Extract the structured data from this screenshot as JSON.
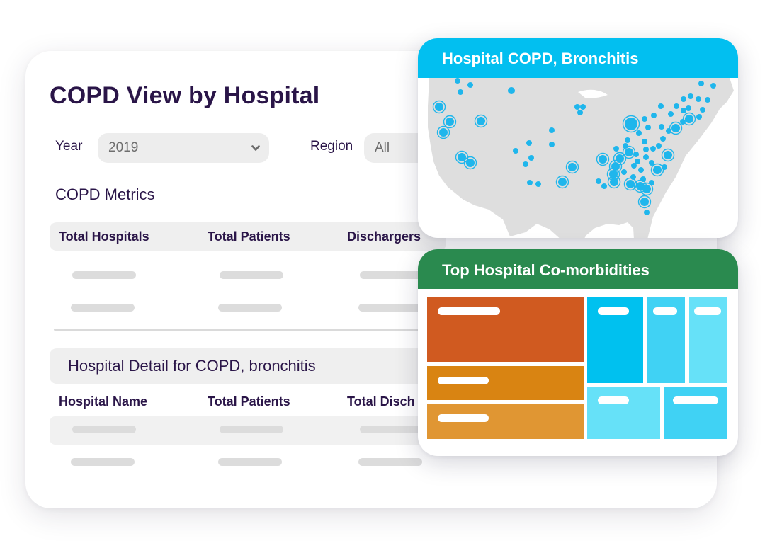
{
  "main": {
    "title": "COPD View by Hospital",
    "filters": {
      "year_label": "Year",
      "year_value": "2019",
      "region_label": "Region",
      "region_value": "All"
    },
    "metrics": {
      "title": "COPD Metrics",
      "columns": [
        "Total Hospitals",
        "Total Patients",
        "Dischargers"
      ]
    },
    "detail": {
      "title": "Hospital Detail for COPD, bronchitis",
      "columns": [
        "Hospital Name",
        "Total Patients",
        "Total Disch"
      ]
    }
  },
  "map_panel": {
    "title": "Hospital COPD, Bronchitis"
  },
  "treemap_panel": {
    "title": "Top Hospital Co-morbidities"
  },
  "colors": {
    "title_text": "#2a1548",
    "map_header": "#02bff0",
    "map_dot": "#1fb6ec",
    "map_land": "#dedede",
    "treemap_header": "#2a8a4f",
    "tile_orange_dark": "#d05a20",
    "tile_orange": "#d98412",
    "tile_orange_light": "#e09633",
    "tile_blue_dark": "#00c1ef",
    "tile_blue": "#40d2f4",
    "tile_blue_light": "#66e1f8"
  },
  "icons": {
    "year_dropdown": "chevron-down-icon"
  }
}
